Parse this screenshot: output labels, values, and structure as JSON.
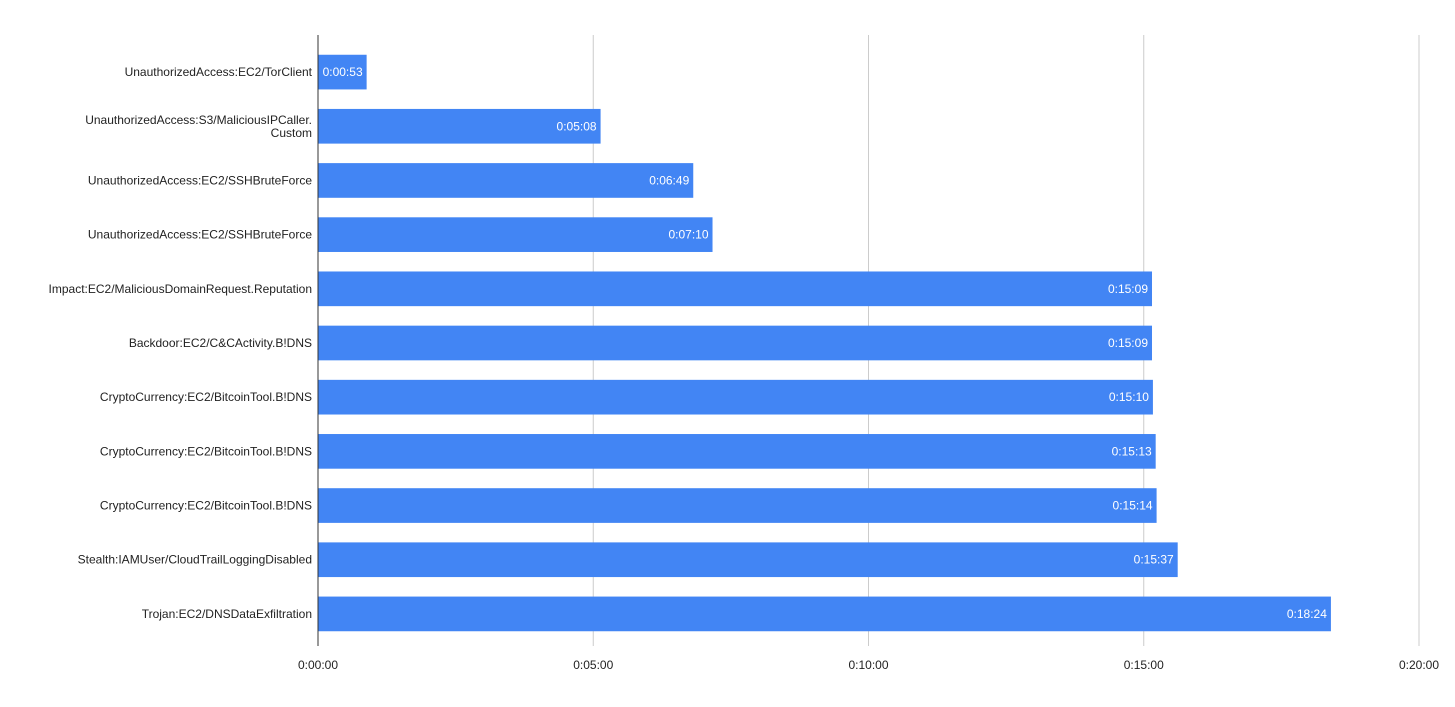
{
  "chart_data": {
    "type": "bar",
    "orientation": "horizontal",
    "categories": [
      [
        "UnauthorizedAccess:EC2/TorClient"
      ],
      [
        "UnauthorizedAccess:S3/MaliciousIPCaller.",
        "Custom"
      ],
      [
        "UnauthorizedAccess:EC2/SSHBruteForce"
      ],
      [
        "UnauthorizedAccess:EC2/SSHBruteForce"
      ],
      [
        "Impact:EC2/MaliciousDomainRequest.Reputation"
      ],
      [
        "Backdoor:EC2/C&CActivity.B!DNS"
      ],
      [
        "CryptoCurrency:EC2/BitcoinTool.B!DNS"
      ],
      [
        "CryptoCurrency:EC2/BitcoinTool.B!DNS"
      ],
      [
        "CryptoCurrency:EC2/BitcoinTool.B!DNS"
      ],
      [
        "Stealth:IAMUser/CloudTrailLoggingDisabled"
      ],
      [
        "Trojan:EC2/DNSDataExfiltration"
      ]
    ],
    "values": [
      "0:00:53",
      "0:05:08",
      "0:06:49",
      "0:07:10",
      "0:15:09",
      "0:15:09",
      "0:15:10",
      "0:15:13",
      "0:15:14",
      "0:15:37",
      "0:18:24"
    ],
    "data_labels": [
      "0:00:53",
      "0:05:08",
      "0:06:49",
      "0:07:10",
      "0:15:09",
      "0:15:09",
      "0:15:10",
      "0:15:13",
      "0:15:14",
      "0:15:37",
      "0:18:24"
    ],
    "xlim": [
      "0:00:00",
      "0:20:00"
    ],
    "x_ticks": [
      "0:00:00",
      "0:05:00",
      "0:10:00",
      "0:15:00",
      "0:20:00"
    ],
    "bar_color": "#4285f4",
    "grid": true,
    "legend": "none",
    "title": "",
    "xlabel": "",
    "ylabel": ""
  }
}
